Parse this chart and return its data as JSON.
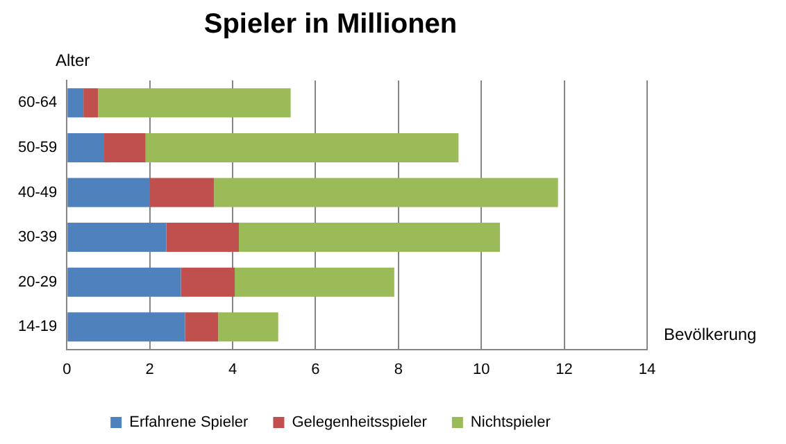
{
  "chart_data": {
    "type": "bar",
    "orientation": "horizontal",
    "stacked": true,
    "title": "Spieler in Millionen",
    "xlabel": "Bevölkerung",
    "ylabel": "Alter",
    "categories": [
      "60-64",
      "50-59",
      "40-49",
      "30-39",
      "20-29",
      "14-19"
    ],
    "series": [
      {
        "name": "Erfahrene Spieler",
        "color": "#4f81bd",
        "values": [
          0.4,
          0.9,
          2.0,
          2.4,
          2.75,
          2.85
        ]
      },
      {
        "name": "Gelegenheitsspieler",
        "color": "#c0504d",
        "values": [
          0.35,
          1.0,
          1.55,
          1.75,
          1.3,
          0.8
        ]
      },
      {
        "name": "Nichtspieler",
        "color": "#9bbb59",
        "values": [
          4.65,
          7.55,
          8.3,
          6.3,
          3.85,
          1.45
        ]
      }
    ],
    "xlim": [
      0,
      14
    ],
    "xticks": [
      0,
      2,
      4,
      6,
      8,
      10,
      12,
      14
    ],
    "grid": "x",
    "legend": "bottom"
  }
}
